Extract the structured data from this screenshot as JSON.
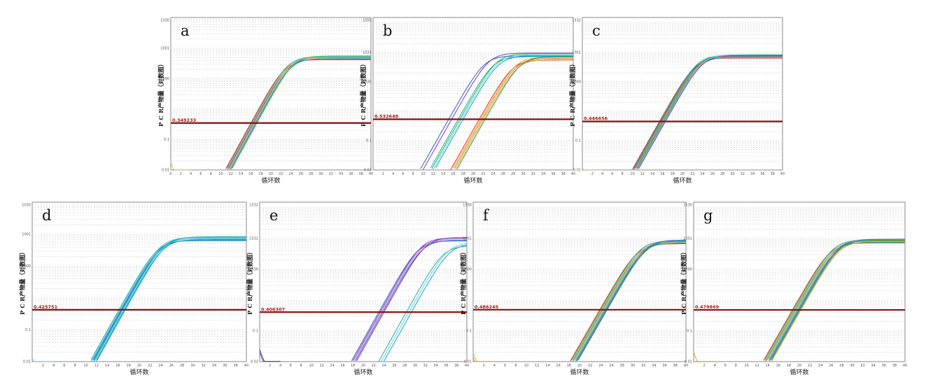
{
  "palette": [
    "#e8322a",
    "#1ab3a6",
    "#2f5fc8",
    "#e8a21a",
    "#7a3fb8",
    "#2ab84a",
    "#6ed0e0",
    "#d16ac0",
    "#b8b83a",
    "#f07838",
    "#3a9a3a",
    "#14a0d8"
  ],
  "chart_data": [
    {
      "type": "line",
      "id": "a",
      "panel_label": "a",
      "threshold": 0.349233,
      "threshold_label": "0.349233",
      "xlabel": "循环数",
      "ylabel": "P C R产物量（对数图）",
      "xlim": [
        0,
        40
      ],
      "ylim": [
        0.01,
        1030
      ],
      "yscale": "log",
      "yticks": [
        {
          "v": 0.01,
          "t": "0.01"
        },
        {
          "v": 0.1,
          "t": "0.1"
        },
        {
          "v": 10,
          "t": "1000"
        },
        {
          "v": 100,
          "t": "1001"
        },
        {
          "v": 1030,
          "t": "1030"
        }
      ],
      "xticks": [
        0,
        2,
        4,
        6,
        8,
        10,
        12,
        14,
        16,
        18,
        20,
        22,
        24,
        26,
        28,
        30,
        32,
        34,
        36,
        38,
        40
      ],
      "groups": [
        {
          "ct": 16.6,
          "n": 8,
          "spread": 0.6,
          "plateau": 50,
          "colors": [
            0,
            1,
            3,
            4,
            6,
            9,
            11,
            5
          ]
        }
      ],
      "background": [
        {
          "color": "#c8c86e",
          "y0": 0.018
        }
      ]
    },
    {
      "type": "line",
      "id": "b",
      "panel_label": "b",
      "threshold": 0.532648,
      "threshold_label": "0.532648",
      "xlabel": "循环数",
      "ylabel": "P C R产物量（对数图）",
      "xlim": [
        0,
        40
      ],
      "ylim": [
        0.01,
        1550
      ],
      "yscale": "log",
      "yticks": [
        {
          "v": 0.01,
          "t": "0.01"
        },
        {
          "v": 0.1,
          "t": "0.1"
        },
        {
          "v": 10,
          "t": "1530"
        },
        {
          "v": 100,
          "t": "1531"
        },
        {
          "v": 1550,
          "t": "1550"
        }
      ],
      "xticks": [
        2,
        4,
        6,
        8,
        10,
        12,
        14,
        16,
        18,
        20,
        22,
        24,
        26,
        28,
        30,
        32,
        34,
        36,
        38,
        40
      ],
      "groups": [
        {
          "ct": 15.4,
          "n": 2,
          "spread": 0.3,
          "plateau": 90,
          "colors": [
            2,
            4
          ]
        },
        {
          "ct": 17.5,
          "n": 4,
          "spread": 0.5,
          "plateau": 85,
          "colors": [
            1,
            5,
            6,
            11
          ]
        },
        {
          "ct": 21.8,
          "n": 5,
          "spread": 0.6,
          "plateau": 65,
          "colors": [
            0,
            3,
            9,
            8,
            10
          ]
        }
      ],
      "background": []
    },
    {
      "type": "line",
      "id": "c",
      "panel_label": "c",
      "threshold": 0.446656,
      "threshold_label": "0.446656",
      "xlabel": "循环数",
      "ylabel": "P C R产物量（对数图）",
      "xlim": [
        0,
        40
      ],
      "ylim": [
        0.01,
        1532
      ],
      "yscale": "log",
      "yticks": [
        {
          "v": 0.01,
          "t": "0.01"
        },
        {
          "v": 0.1,
          "t": "0.1"
        },
        {
          "v": 10,
          "t": "1000"
        },
        {
          "v": 100,
          "t": "1001"
        },
        {
          "v": 1532,
          "t": "1532"
        }
      ],
      "xticks": [
        2,
        4,
        6,
        8,
        10,
        12,
        14,
        16,
        18,
        20,
        22,
        24,
        26,
        28,
        30,
        32,
        34,
        36,
        38,
        40
      ],
      "groups": [
        {
          "ct": 16.0,
          "n": 9,
          "spread": 0.6,
          "plateau": 75,
          "colors": [
            0,
            1,
            2,
            3,
            5,
            9,
            11,
            6,
            4
          ]
        }
      ],
      "background": [
        {
          "color": "#c8c86e",
          "y0": 0.012
        }
      ]
    },
    {
      "type": "line",
      "id": "d",
      "panel_label": "d",
      "threshold": 0.425751,
      "threshold_label": "0.425751",
      "xlabel": "循环数",
      "ylabel": "P C R产物量（对数图）",
      "xlim": [
        0,
        40
      ],
      "ylim": [
        0.01,
        1030
      ],
      "yscale": "log",
      "yticks": [
        {
          "v": 0.01,
          "t": "0.01"
        },
        {
          "v": 0.1,
          "t": "0.1"
        },
        {
          "v": 10,
          "t": "1000"
        },
        {
          "v": 100,
          "t": "1001"
        },
        {
          "v": 1030,
          "t": "1030"
        }
      ],
      "xticks": [
        2,
        4,
        6,
        8,
        10,
        12,
        14,
        16,
        18,
        20,
        22,
        24,
        26,
        28,
        30,
        32,
        34,
        36,
        38,
        40
      ],
      "groups": [
        {
          "ct": 16.8,
          "n": 8,
          "spread": 0.6,
          "plateau": 75,
          "colors": [
            1,
            6,
            11,
            2,
            1,
            6,
            11,
            1
          ]
        }
      ],
      "background": [
        {
          "color": "#6ed0e0",
          "y0": 0.013
        }
      ]
    },
    {
      "type": "line",
      "id": "e",
      "panel_label": "e",
      "threshold": 0.406307,
      "threshold_label": "0.406307",
      "xlabel": "循环数",
      "ylabel": "P C R产物量（对数图）",
      "xlim": [
        0,
        40
      ],
      "ylim": [
        0.01,
        1532
      ],
      "yscale": "log",
      "yticks": [
        {
          "v": 0.01,
          "t": "0.01"
        },
        {
          "v": 0.1,
          "t": "0.1"
        },
        {
          "v": 10,
          "t": "1530"
        },
        {
          "v": 100,
          "t": "1531"
        },
        {
          "v": 1532,
          "t": "1532"
        }
      ],
      "xticks": [
        2,
        4,
        6,
        8,
        10,
        12,
        14,
        16,
        18,
        20,
        22,
        24,
        26,
        28,
        30,
        32,
        34,
        36,
        38,
        40
      ],
      "groups": [
        {
          "ct": 23.5,
          "n": 5,
          "spread": 0.5,
          "plateau": 100,
          "colors": [
            2,
            4,
            7,
            2,
            4
          ]
        },
        {
          "ct": 28.8,
          "n": 3,
          "spread": 0.5,
          "plateau": 70,
          "colors": [
            1,
            6,
            11
          ]
        }
      ],
      "background": [
        {
          "color": "#7a3fb8",
          "y0": 0.02
        },
        {
          "color": "#3c3ca0",
          "y0": 0.025
        }
      ]
    },
    {
      "type": "line",
      "id": "f",
      "panel_label": "f",
      "threshold": 0.486245,
      "threshold_label": "0.486245",
      "xlabel": "循环数",
      "ylabel": "P C R产物量（对数图）",
      "xlim": [
        0,
        40
      ],
      "ylim": [
        0.01,
        1530
      ],
      "yscale": "log",
      "yticks": [
        {
          "v": 0.01,
          "t": "0.01"
        },
        {
          "v": 0.1,
          "t": "0.1"
        },
        {
          "v": 10,
          "t": "1000"
        },
        {
          "v": 100,
          "t": "1001"
        },
        {
          "v": 1530,
          "t": "1530"
        }
      ],
      "xticks": [
        2,
        4,
        6,
        8,
        10,
        12,
        14,
        16,
        18,
        20,
        22,
        24,
        26,
        28,
        30,
        32,
        34,
        36,
        38,
        40
      ],
      "groups": [
        {
          "ct": 24.5,
          "n": 9,
          "spread": 0.7,
          "plateau": 80,
          "colors": [
            0,
            1,
            3,
            5,
            6,
            9,
            11,
            2,
            10
          ]
        }
      ],
      "background": [
        {
          "color": "#c8c86e",
          "y0": 0.02
        },
        {
          "color": "#e8a21a",
          "y0": 0.014
        }
      ]
    },
    {
      "type": "line",
      "id": "g",
      "panel_label": "g",
      "threshold": 0.479869,
      "threshold_label": "0.479869",
      "xlabel": "循环数",
      "ylabel": "P C R产物量（对数图）",
      "xlim": [
        0,
        40
      ],
      "ylim": [
        0.01,
        1530
      ],
      "yscale": "log",
      "yticks": [
        {
          "v": 0.01,
          "t": "0.01"
        },
        {
          "v": 0.1,
          "t": "0.1"
        },
        {
          "v": 10,
          "t": "1000"
        },
        {
          "v": 100,
          "t": "1001"
        },
        {
          "v": 1530,
          "t": "1530"
        }
      ],
      "xticks": [
        2,
        4,
        6,
        8,
        10,
        12,
        14,
        16,
        18,
        20,
        22,
        24,
        26,
        28,
        30,
        32,
        34,
        36,
        38,
        40
      ],
      "groups": [
        {
          "ct": 19.5,
          "n": 10,
          "spread": 0.8,
          "plateau": 85,
          "colors": [
            0,
            1,
            3,
            5,
            6,
            9,
            11,
            2,
            10,
            8
          ]
        }
      ],
      "background": [
        {
          "color": "#e8a21a",
          "y0": 0.02
        }
      ]
    }
  ]
}
